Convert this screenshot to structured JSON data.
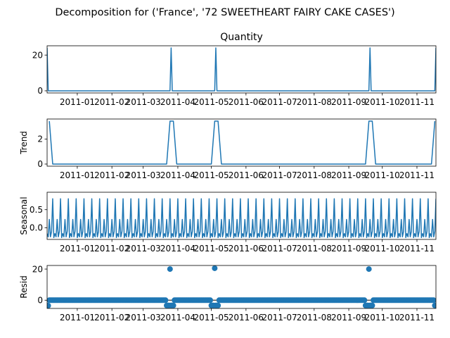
{
  "suptitle": "Decomposition for ('France', '72 SWEETHEART FAIRY CAKE CASES')",
  "colors": {
    "line": "#1f77b4",
    "axes": "#000000",
    "background": "#ffffff"
  },
  "chart_data": [
    {
      "type": "line",
      "panel": "observed",
      "title": "Quantity",
      "ylabel": "",
      "ylim": [
        -1.2,
        25.2
      ],
      "yticks": [
        0,
        20
      ],
      "xlim": [
        "2010-12-05",
        "2011-11-18"
      ],
      "xtick_labels": [
        "2011-01",
        "2011-02",
        "2011-03",
        "2011-04",
        "2011-05",
        "2011-06",
        "2011-07",
        "2011-08",
        "2011-09",
        "2011-10",
        "2011-11"
      ],
      "series": [
        {
          "x": [
            "2010-12-05",
            "2010-12-06",
            "2011-03-25",
            "2011-03-26",
            "2011-03-27",
            "2011-05-04",
            "2011-05-05",
            "2011-05-06",
            "2011-09-19",
            "2011-09-20",
            "2011-09-21",
            "2011-11-17",
            "2011-11-18"
          ],
          "values": [
            24,
            0,
            0,
            24,
            0,
            0,
            24,
            0,
            0,
            24,
            0,
            0,
            24
          ]
        }
      ]
    },
    {
      "type": "line",
      "panel": "trend",
      "title": "",
      "ylabel": "Trend",
      "ylim": [
        -0.17,
        3.6
      ],
      "yticks": [
        0,
        2
      ],
      "xlim": [
        "2010-12-05",
        "2011-11-18"
      ],
      "xtick_labels": [
        "2011-01",
        "2011-02",
        "2011-03",
        "2011-04",
        "2011-05",
        "2011-06",
        "2011-07",
        "2011-08",
        "2011-09",
        "2011-10",
        "2011-11"
      ],
      "series": [
        {
          "x": [
            "2010-12-07",
            "2010-12-10",
            "2011-03-22",
            "2011-03-25",
            "2011-03-28",
            "2011-03-31",
            "2011-05-01",
            "2011-05-04",
            "2011-05-07",
            "2011-05-10",
            "2011-09-16",
            "2011-09-19",
            "2011-09-22",
            "2011-09-25",
            "2011-11-14",
            "2011-11-17"
          ],
          "values": [
            3.43,
            0,
            0,
            3.43,
            3.43,
            0,
            0,
            3.43,
            3.43,
            0,
            0,
            3.43,
            3.43,
            0,
            0,
            3.43
          ]
        }
      ]
    },
    {
      "type": "line",
      "panel": "seasonal",
      "title": "",
      "ylabel": "Seasonal",
      "ylim": [
        -0.32,
        0.98
      ],
      "yticks": [
        -0.0,
        0.5
      ],
      "ytick_labels": [
        "0.0",
        "0.5"
      ],
      "xlim": [
        "2010-12-05",
        "2011-11-18"
      ],
      "xtick_labels": [
        "2011-01",
        "2011-02",
        "2011-03",
        "2011-04",
        "2011-05",
        "2011-06",
        "2011-07",
        "2011-08",
        "2011-09",
        "2011-10",
        "2011-11"
      ],
      "period": 7,
      "pattern": [
        -0.16,
        -0.25,
        0.23,
        -0.25,
        -0.1,
        0.8,
        -0.27
      ],
      "start": "2010-12-05",
      "end": "2011-11-18"
    },
    {
      "type": "scatter",
      "panel": "resid",
      "title": "",
      "ylabel": "Resid",
      "ylim": [
        -5.3,
        22.3
      ],
      "yticks": [
        0,
        20
      ],
      "xlim": [
        "2010-12-05",
        "2011-11-18"
      ],
      "xtick_labels": [
        "2011-01",
        "2011-02",
        "2011-03",
        "2011-04",
        "2011-05",
        "2011-06",
        "2011-07",
        "2011-08",
        "2011-09",
        "2011-10",
        "2011-11"
      ],
      "baseline": 0,
      "default_value": 0,
      "points": [
        {
          "x": "2010-12-05",
          "value": -3.5
        },
        {
          "x": "2010-12-06",
          "value": -3.5
        },
        {
          "x": "2011-03-22",
          "value": -3.4
        },
        {
          "x": "2011-03-23",
          "value": -3.4
        },
        {
          "x": "2011-03-24",
          "value": -3.4
        },
        {
          "x": "2011-03-25",
          "value": 20
        },
        {
          "x": "2011-03-26",
          "value": -3.4
        },
        {
          "x": "2011-03-27",
          "value": -3.4
        },
        {
          "x": "2011-03-28",
          "value": -3.4
        },
        {
          "x": "2011-05-01",
          "value": -3.4
        },
        {
          "x": "2011-05-02",
          "value": -3.4
        },
        {
          "x": "2011-05-03",
          "value": -3.4
        },
        {
          "x": "2011-05-04",
          "value": 20.5
        },
        {
          "x": "2011-05-05",
          "value": -3.4
        },
        {
          "x": "2011-05-06",
          "value": -3.4
        },
        {
          "x": "2011-05-07",
          "value": -3.4
        },
        {
          "x": "2011-09-16",
          "value": -3.4
        },
        {
          "x": "2011-09-17",
          "value": -3.4
        },
        {
          "x": "2011-09-18",
          "value": -3.4
        },
        {
          "x": "2011-09-19",
          "value": 20
        },
        {
          "x": "2011-09-20",
          "value": -3.4
        },
        {
          "x": "2011-09-21",
          "value": -3.4
        },
        {
          "x": "2011-09-22",
          "value": -3.4
        },
        {
          "x": "2011-11-17",
          "value": -3.4
        },
        {
          "x": "2011-11-18",
          "value": -3.4
        }
      ]
    }
  ]
}
